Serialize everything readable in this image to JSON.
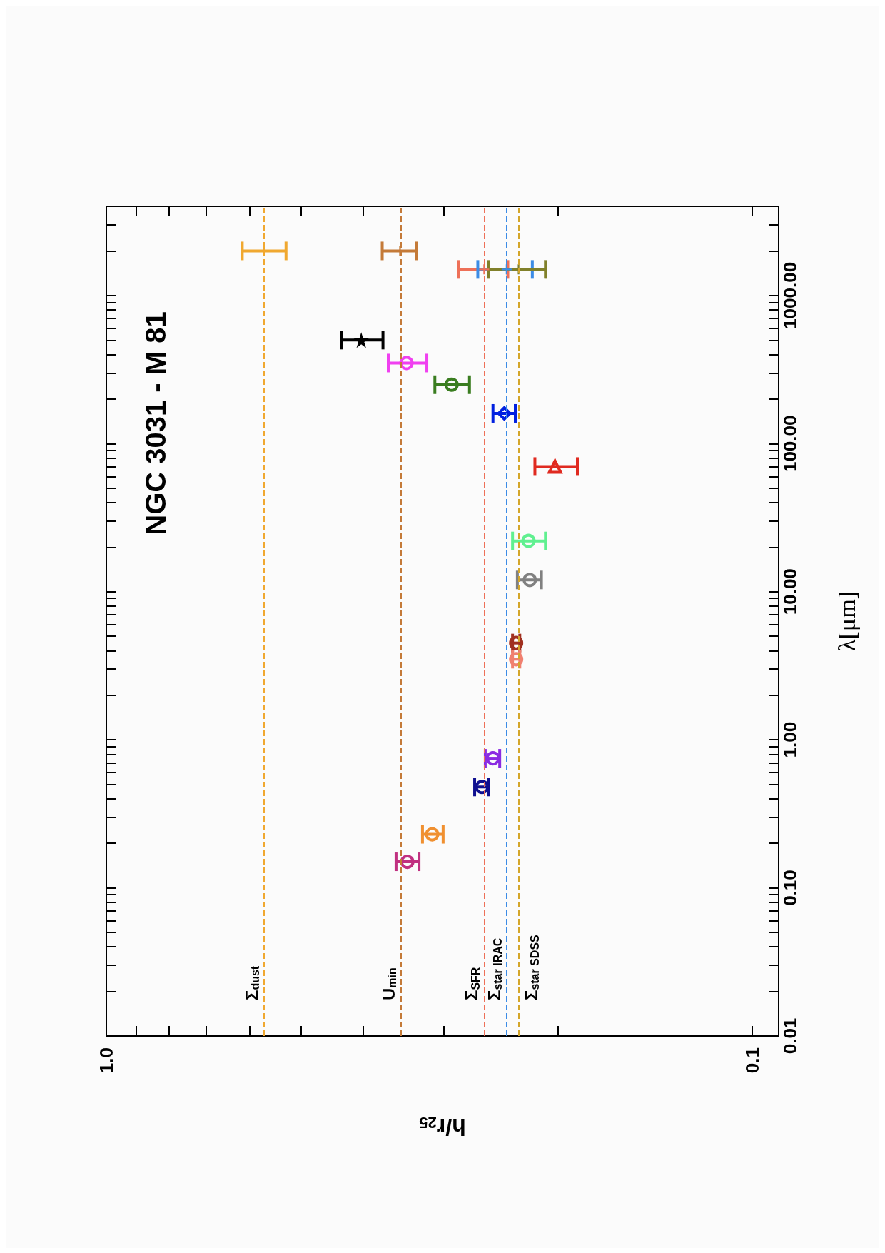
{
  "chart_data": {
    "type": "scatter",
    "title": "NGC 3031 - M 81",
    "xlabel": "h/r$_{25}$",
    "ylabel": "λ[μm]",
    "log": "xy",
    "grid": false,
    "xlim": [
      1.0,
      0.091
    ],
    "ylim": [
      0.01,
      4000
    ],
    "xticks": [
      {
        "value": 1.0,
        "label": "1.0"
      },
      {
        "value": 0.9,
        "label": null
      },
      {
        "value": 0.8,
        "label": null
      },
      {
        "value": 0.7,
        "label": null
      },
      {
        "value": 0.6,
        "label": null
      },
      {
        "value": 0.5,
        "label": null
      },
      {
        "value": 0.4,
        "label": null
      },
      {
        "value": 0.3,
        "label": null
      },
      {
        "value": 0.2,
        "label": null
      },
      {
        "value": 0.1,
        "label": "0.1"
      }
    ],
    "yticks": [
      0.01,
      {
        "value": 0.02,
        "label": null
      },
      {
        "value": 0.03,
        "label": null
      },
      {
        "value": 0.04,
        "label": null
      },
      {
        "value": 0.05,
        "label": null
      },
      {
        "value": 0.06,
        "label": null
      },
      {
        "value": 0.07,
        "label": null
      },
      {
        "value": 0.08,
        "label": null
      },
      {
        "value": 0.09,
        "label": null
      },
      {
        "value": 0.1,
        "label": "0.10"
      },
      {
        "value": 0.2,
        "label": null
      },
      {
        "value": 0.3,
        "label": null
      },
      {
        "value": 0.4,
        "label": null
      },
      {
        "value": 0.5,
        "label": null
      },
      {
        "value": 0.6,
        "label": null
      },
      {
        "value": 0.7,
        "label": null
      },
      {
        "value": 0.8,
        "label": null
      },
      {
        "value": 0.9,
        "label": null
      },
      {
        "value": 1,
        "label": "1.00"
      },
      {
        "value": 2,
        "label": null
      },
      {
        "value": 3,
        "label": null
      },
      {
        "value": 4,
        "label": null
      },
      {
        "value": 5,
        "label": null
      },
      {
        "value": 6,
        "label": null
      },
      {
        "value": 7,
        "label": null
      },
      {
        "value": 8,
        "label": null
      },
      {
        "value": 9,
        "label": null
      },
      {
        "value": 10,
        "label": "10.00"
      },
      {
        "value": 20,
        "label": null
      },
      {
        "value": 30,
        "label": null
      },
      {
        "value": 40,
        "label": null
      },
      {
        "value": 50,
        "label": null
      },
      {
        "value": 60,
        "label": null
      },
      {
        "value": 70,
        "label": null
      },
      {
        "value": 80,
        "label": null
      },
      {
        "value": 90,
        "label": null
      },
      {
        "value": 100,
        "label": "100.00"
      },
      {
        "value": 200,
        "label": null
      },
      {
        "value": 300,
        "label": null
      },
      {
        "value": 400,
        "label": null
      },
      {
        "value": 500,
        "label": null
      },
      {
        "value": 600,
        "label": null
      },
      {
        "value": 700,
        "label": null
      },
      {
        "value": 800,
        "label": null
      },
      {
        "value": 900,
        "label": null
      },
      {
        "value": 1000,
        "label": "1000.00"
      },
      {
        "value": 2000,
        "label": null
      },
      {
        "value": 3000,
        "label": null
      }
    ],
    "ref_lines": [
      {
        "axis": "x",
        "value": 0.57,
        "label": "Σ$_{dust}$",
        "color": "#f0a830",
        "line_style": "dashed"
      },
      {
        "axis": "x",
        "value": 0.351,
        "label": "U$_{min}$",
        "color": "#c47a38",
        "line_style": "dashed"
      },
      {
        "axis": "x",
        "value": 0.26,
        "label": "Σ$_{SFR}$",
        "color": "#ee7058",
        "line_style": "dashed"
      },
      {
        "axis": "x",
        "value": 0.24,
        "label": "Σ$_{star IRAC}$",
        "color": "#3c8ce6",
        "line_style": "dashed"
      },
      {
        "axis": "x",
        "value": 0.23,
        "label": "Σ$_{star SDSS}$",
        "color": "#d4a62a",
        "line_style": "dashed"
      }
    ],
    "series": [
      {
        "color": "#f0a830",
        "marker": "cross",
        "x": [
          0.57
        ],
        "values": [
          2000
        ],
        "xerrors": [
          [
            0.527,
            0.616
          ]
        ]
      },
      {
        "color": "#c47a38",
        "marker": "cross",
        "x": [
          0.351
        ],
        "values": [
          2000
        ],
        "xerrors": [
          [
            0.331,
            0.374
          ]
        ]
      },
      {
        "color": "#ee7058",
        "marker": "cross",
        "x": [
          0.26
        ],
        "values": [
          1500
        ],
        "xerrors": [
          [
            0.239,
            0.285
          ]
        ]
      },
      {
        "color": "#3c8ce6",
        "marker": "cross",
        "x": [
          0.24
        ],
        "values": [
          1500
        ],
        "xerrors": [
          [
            0.219,
            0.266
          ]
        ]
      },
      {
        "color": "#80802a",
        "marker": "cross",
        "x": [
          0.23
        ],
        "values": [
          1500
        ],
        "xerrors": [
          [
            0.209,
            0.256
          ]
        ]
      },
      {
        "color": "#000000",
        "marker": "star",
        "x": [
          0.403
        ],
        "values": [
          500
        ],
        "xerrors": [
          [
            0.373,
            0.432
          ]
        ]
      },
      {
        "color": "#f040f0",
        "marker": "circle",
        "x": [
          0.343
        ],
        "values": [
          350
        ],
        "xerrors": [
          [
            0.319,
            0.366
          ]
        ]
      },
      {
        "color": "#3a7d20",
        "marker": "circle",
        "x": [
          0.292
        ],
        "values": [
          250
        ],
        "xerrors": [
          [
            0.274,
            0.31
          ]
        ]
      },
      {
        "color": "#0020e0",
        "marker": "diamond",
        "x": [
          0.242
        ],
        "values": [
          160
        ],
        "xerrors": [
          [
            0.2327,
            0.252
          ]
        ]
      },
      {
        "color": "#e02a20",
        "marker": "triangle",
        "x": [
          0.202
        ],
        "values": [
          70
        ],
        "xerrors": [
          [
            0.1865,
            0.217
          ]
        ]
      },
      {
        "color": "#60f090",
        "marker": "circle",
        "x": [
          0.222
        ],
        "values": [
          22
        ],
        "xerrors": [
          [
            0.209,
            0.235
          ]
        ]
      },
      {
        "color": "#808080",
        "marker": "circle",
        "x": [
          0.221
        ],
        "values": [
          12
        ],
        "xerrors": [
          [
            0.212,
            0.231
          ]
        ]
      },
      {
        "color": "#a03020",
        "marker": "circle",
        "x": [
          0.232
        ],
        "values": [
          4.5
        ],
        "xerrors": [
          [
            0.229,
            0.235
          ]
        ]
      },
      {
        "color": "#f08070",
        "marker": "circle",
        "x": [
          0.232
        ],
        "values": [
          3.5
        ],
        "xerrors": [
          [
            0.229,
            0.235
          ]
        ]
      },
      {
        "color": "#8a2be2",
        "marker": "circle",
        "x": [
          0.252
        ],
        "values": [
          0.75
        ],
        "xerrors": [
          [
            0.246,
            0.259
          ]
        ]
      },
      {
        "color": "#101090",
        "marker": "circle",
        "x": [
          0.262
        ],
        "values": [
          0.48
        ],
        "xerrors": [
          [
            0.256,
            0.269
          ]
        ]
      },
      {
        "color": "#f09030",
        "marker": "circle",
        "x": [
          0.313
        ],
        "values": [
          0.23
        ],
        "xerrors": [
          [
            0.301,
            0.324
          ]
        ]
      },
      {
        "color": "#c03080",
        "marker": "circle",
        "x": [
          0.342
        ],
        "values": [
          0.15
        ],
        "xerrors": [
          [
            0.328,
            0.356
          ]
        ]
      }
    ]
  }
}
